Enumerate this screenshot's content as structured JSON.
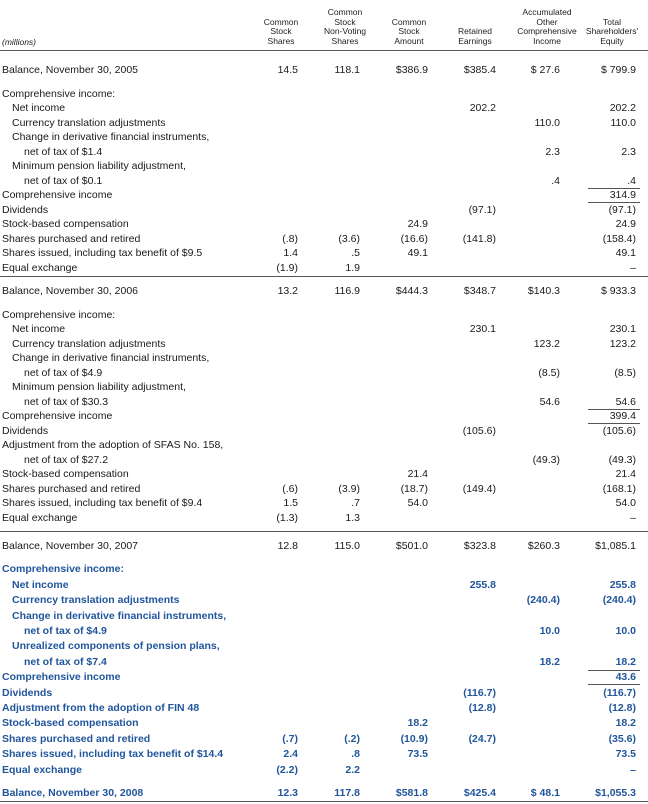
{
  "header": {
    "unit": "(millions)",
    "columns": [
      [
        "Common",
        "Stock",
        "Shares"
      ],
      [
        "Common",
        "Stock",
        "Non-Voting",
        "Shares"
      ],
      [
        "Common",
        "Stock",
        "Amount"
      ],
      [
        "Retained",
        "Earnings"
      ],
      [
        "Accumulated",
        "Other",
        "Comprehensive",
        "Income"
      ],
      [
        "Total",
        "Shareholders'",
        "Equity"
      ]
    ]
  },
  "table": {
    "rows": [
      [
        "Balance, November 30, 2005",
        "14.5",
        "118.1",
        "$386.9",
        "$385.4",
        "$ 27.6",
        "$ 799.9"
      ],
      [
        "Comprehensive income:"
      ],
      [
        "Net income",
        null,
        null,
        null,
        "202.2",
        null,
        "202.2"
      ],
      [
        "Currency translation adjustments",
        null,
        null,
        null,
        null,
        "110.0",
        "110.0"
      ],
      [
        "Change in derivative financial instruments,"
      ],
      [
        "net of tax of $1.4",
        null,
        null,
        null,
        null,
        "2.3",
        "2.3"
      ],
      [
        "Minimum pension liability adjustment,"
      ],
      [
        "net of tax of $0.1",
        null,
        null,
        null,
        null,
        ".4",
        ".4"
      ],
      [
        "Comprehensive income",
        null,
        null,
        null,
        null,
        null,
        "314.9"
      ],
      [
        "Dividends",
        null,
        null,
        null,
        "(97.1)",
        null,
        "(97.1)"
      ],
      [
        "Stock-based compensation",
        null,
        null,
        "24.9",
        null,
        null,
        "24.9"
      ],
      [
        "Shares purchased and retired",
        "(.8)",
        "(3.6)",
        "(16.6)",
        "(141.8)",
        null,
        "(158.4)"
      ],
      [
        "Shares issued, including tax benefit of $9.5",
        "1.4",
        ".5",
        "49.1",
        null,
        null,
        "49.1"
      ],
      [
        "Equal exchange",
        "(1.9)",
        "1.9",
        null,
        null,
        null,
        "–"
      ],
      [
        "Balance, November 30, 2006",
        "13.2",
        "116.9",
        "$444.3",
        "$348.7",
        "$140.3",
        "$ 933.3"
      ],
      [
        "Comprehensive income:"
      ],
      [
        "Net income",
        null,
        null,
        null,
        "230.1",
        null,
        "230.1"
      ],
      [
        "Currency translation adjustments",
        null,
        null,
        null,
        null,
        "123.2",
        "123.2"
      ],
      [
        "Change in derivative financial instruments,"
      ],
      [
        "net of tax of $4.9",
        null,
        null,
        null,
        null,
        "(8.5)",
        "(8.5)"
      ],
      [
        "Minimum pension liability adjustment,"
      ],
      [
        "net of tax of $30.3",
        null,
        null,
        null,
        null,
        "54.6",
        "54.6"
      ],
      [
        "Comprehensive income",
        null,
        null,
        null,
        null,
        null,
        "399.4"
      ],
      [
        "Dividends",
        null,
        null,
        null,
        "(105.6)",
        null,
        "(105.6)"
      ],
      [
        "Adjustment from the adoption of SFAS No. 158,"
      ],
      [
        "net of tax of $27.2",
        null,
        null,
        null,
        null,
        "(49.3)",
        "(49.3)"
      ],
      [
        "Stock-based compensation",
        null,
        null,
        "21.4",
        null,
        null,
        "21.4"
      ],
      [
        "Shares purchased and retired",
        "(.6)",
        "(3.9)",
        "(18.7)",
        "(149.4)",
        null,
        "(168.1)"
      ],
      [
        "Shares issued, including tax benefit of $9.4",
        "1.5",
        ".7",
        "54.0",
        null,
        null,
        "54.0"
      ],
      [
        "Equal exchange",
        "(1.3)",
        "1.3",
        null,
        null,
        null,
        "–"
      ],
      [
        "Balance, November 30, 2007",
        "12.8",
        "115.0",
        "$501.0",
        "$323.8",
        "$260.3",
        "$1,085.1"
      ],
      [
        "Comprehensive income:"
      ],
      [
        "Net income",
        null,
        null,
        null,
        "255.8",
        null,
        "255.8"
      ],
      [
        "Currency translation adjustments",
        null,
        null,
        null,
        null,
        "(240.4)",
        "(240.4)"
      ],
      [
        "Change in derivative financial instruments,"
      ],
      [
        "net of tax of $4.9",
        null,
        null,
        null,
        null,
        "10.0",
        "10.0"
      ],
      [
        "Unrealized components of pension plans,"
      ],
      [
        "net of tax of $7.4",
        null,
        null,
        null,
        null,
        "18.2",
        "18.2"
      ],
      [
        "Comprehensive income",
        null,
        null,
        null,
        null,
        null,
        "43.6"
      ],
      [
        "Dividends",
        null,
        null,
        null,
        "(116.7)",
        null,
        "(116.7)"
      ],
      [
        "Adjustment from the adoption of FIN 48",
        null,
        null,
        null,
        "(12.8)",
        null,
        "(12.8)"
      ],
      [
        "Stock-based compensation",
        null,
        null,
        "18.2",
        null,
        null,
        "18.2"
      ],
      [
        "Shares purchased and retired",
        "(.7)",
        "(.2)",
        "(10.9)",
        "(24.7)",
        null,
        "(35.6)"
      ],
      [
        "Shares issued, including tax benefit of $14.4",
        "2.4",
        ".8",
        "73.5",
        null,
        null,
        "73.5"
      ],
      [
        "Equal exchange",
        "(2.2)",
        "2.2",
        null,
        null,
        null,
        "–"
      ],
      [
        "Balance, November 30, 2008",
        "12.3",
        "117.8",
        "$581.8",
        "$425.4",
        "$ 48.1",
        "$1,055.3"
      ]
    ]
  }
}
